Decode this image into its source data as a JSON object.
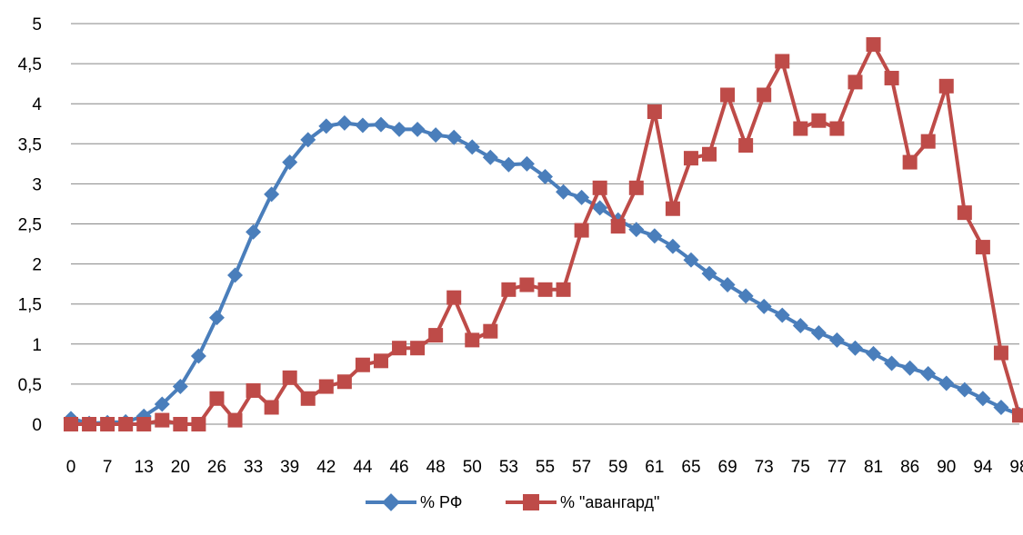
{
  "chart_data": {
    "type": "line",
    "title": "",
    "xlabel": "",
    "ylabel": "",
    "ylim": [
      0,
      5
    ],
    "yticks": [
      "0",
      "0,5",
      "1",
      "1,5",
      "2",
      "2,5",
      "3",
      "3,5",
      "4",
      "4,5",
      "5"
    ],
    "grid": true,
    "legend_position": "bottom",
    "x_tick_labels": [
      "0",
      "7",
      "13",
      "20",
      "26",
      "33",
      "39",
      "42",
      "44",
      "46",
      "48",
      "50",
      "53",
      "55",
      "57",
      "59",
      "61",
      "65",
      "69",
      "73",
      "75",
      "77",
      "81",
      "86",
      "90",
      "94",
      "98"
    ],
    "series": [
      {
        "name": "% РФ",
        "color": "#4a7ebb",
        "marker": "diamond",
        "values": [
          0.07,
          0.01,
          0.02,
          0.03,
          0.1,
          0.25,
          0.47,
          0.85,
          1.33,
          1.86,
          2.4,
          2.87,
          3.27,
          3.55,
          3.72,
          3.76,
          3.73,
          3.74,
          3.68,
          3.68,
          3.61,
          3.58,
          3.46,
          3.33,
          3.24,
          3.25,
          3.09,
          2.9,
          2.83,
          2.7,
          2.55,
          2.43,
          2.35,
          2.22,
          2.05,
          1.88,
          1.74,
          1.6,
          1.47,
          1.36,
          1.23,
          1.14,
          1.05,
          0.95,
          0.88,
          0.76,
          0.7,
          0.63,
          0.51,
          0.43,
          0.32,
          0.21,
          0.12
        ]
      },
      {
        "name": "% \"авангард\"",
        "color": "#be4b48",
        "marker": "square",
        "values": [
          0.0,
          0.0,
          0.0,
          0.0,
          0.0,
          0.05,
          0.0,
          0.0,
          0.32,
          0.05,
          0.42,
          0.21,
          0.58,
          0.32,
          0.47,
          0.53,
          0.74,
          0.79,
          0.95,
          0.95,
          1.11,
          1.58,
          1.05,
          1.16,
          1.68,
          1.74,
          1.68,
          1.68,
          2.42,
          2.95,
          2.47,
          2.95,
          3.9,
          2.69,
          3.32,
          3.37,
          4.11,
          3.48,
          4.11,
          4.53,
          3.69,
          3.79,
          3.69,
          4.27,
          4.74,
          4.32,
          3.27,
          3.53,
          4.22,
          2.64,
          2.21,
          0.89,
          0.11
        ]
      }
    ]
  }
}
